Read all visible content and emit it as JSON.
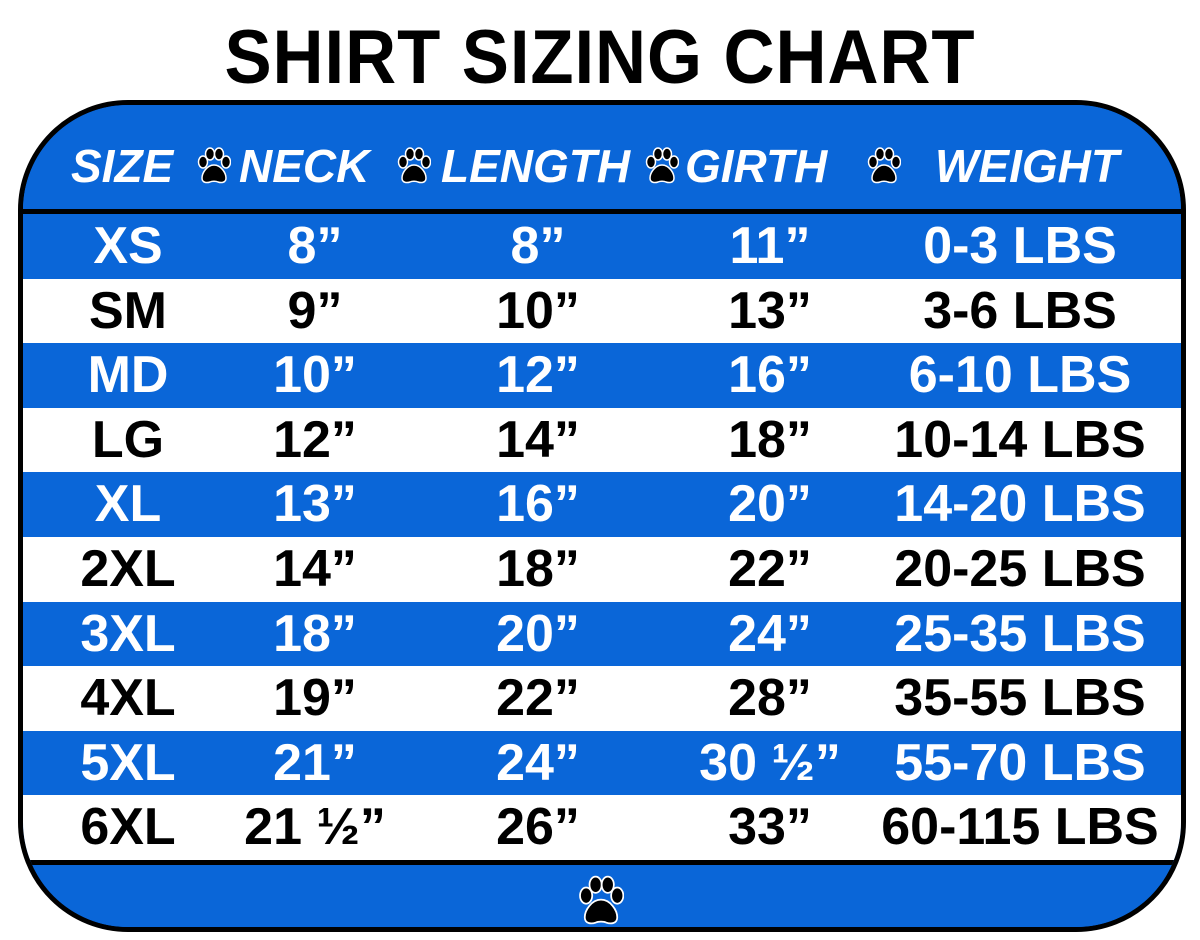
{
  "title": "SHIRT SIZING CHART",
  "colors": {
    "blue": "#0a66d8",
    "white": "#ffffff",
    "border": "#000000"
  },
  "icons": {
    "separator": "paw-print-icon",
    "footer": "paw-print-icon"
  },
  "headers": [
    "SIZE",
    "NECK",
    "LENGTH",
    "GIRTH",
    "WEIGHT"
  ],
  "rows": [
    [
      "XS",
      "8”",
      "8”",
      "11”",
      "0-3 LBS"
    ],
    [
      "SM",
      "9”",
      "10”",
      "13”",
      "3-6 LBS"
    ],
    [
      "MD",
      "10”",
      "12”",
      "16”",
      "6-10 LBS"
    ],
    [
      "LG",
      "12”",
      "14”",
      "18”",
      "10-14 LBS"
    ],
    [
      "XL",
      "13”",
      "16”",
      "20”",
      "14-20 LBS"
    ],
    [
      "2XL",
      "14”",
      "18”",
      "22”",
      "20-25 LBS"
    ],
    [
      "3XL",
      "18”",
      "20”",
      "24”",
      "25-35 LBS"
    ],
    [
      "4XL",
      "19”",
      "22”",
      "28”",
      "35-55 LBS"
    ],
    [
      "5XL",
      "21”",
      "24”",
      "30 ½”",
      "55-70 LBS"
    ],
    [
      "6XL",
      "21 ½”",
      "26”",
      "33”",
      "60-115 LBS"
    ]
  ]
}
